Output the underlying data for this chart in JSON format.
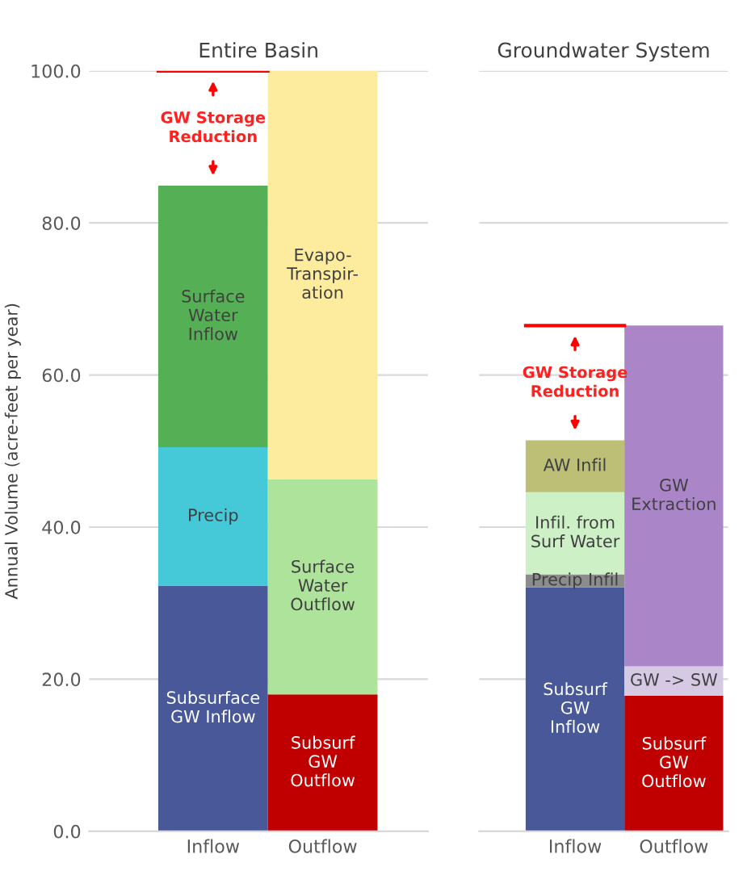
{
  "chart_data": [
    {
      "type": "bar",
      "title": "Entire Basin",
      "ylabel": "Annual Volume (acre-feet per year)",
      "categories": [
        "Inflow",
        "Outflow"
      ],
      "stacked": true,
      "ylim": [
        0,
        100
      ],
      "yticks": [
        {
          "value": 0,
          "label": "0.0"
        },
        {
          "value": 20,
          "label": "20.0"
        },
        {
          "value": 40,
          "label": "40.0"
        },
        {
          "value": 60,
          "label": "60.0"
        },
        {
          "value": 80,
          "label": "80.0"
        },
        {
          "value": 100,
          "label": "100.0"
        }
      ],
      "grid": "y",
      "series": [
        {
          "name": "Subsurface\nGW Inflow",
          "color": "#485898",
          "values": [
            32.3,
            null
          ]
        },
        {
          "name": "Precip",
          "color": "#45c8d8",
          "values": [
            18.2,
            null
          ]
        },
        {
          "name": "Surface\nWater\nInflow",
          "color": "#55b055",
          "values": [
            34.4,
            null
          ]
        },
        {
          "name": "Subsurf\nGW\nOutflow",
          "color": "#c00000",
          "values": [
            null,
            18.0
          ]
        },
        {
          "name": "Surface\nWater\nOutflow",
          "color": "#aee39c",
          "values": [
            null,
            28.3
          ]
        },
        {
          "name": "Evapo-\nTranspir-\nation",
          "color": "#fdeb9e",
          "values": [
            null,
            53.7
          ]
        }
      ],
      "ref_lines": [
        {
          "axis": "y",
          "value": 100,
          "color": "#ff0000"
        }
      ],
      "annotations": [
        "GW Storage\nReduction"
      ]
    },
    {
      "type": "bar",
      "title": "Groundwater System",
      "categories": [
        "Inflow",
        "Outflow"
      ],
      "stacked": true,
      "ylim": [
        0,
        100
      ],
      "yticks": [
        0,
        20,
        40,
        60,
        80,
        100
      ],
      "grid": "y",
      "tick_labels": "x",
      "series": [
        {
          "name": "Subsurf\nGW\nInflow",
          "color": "#485898",
          "values": [
            32.1,
            null
          ]
        },
        {
          "name": "Precip Infil",
          "color": "#8c8c8c",
          "values": [
            1.7,
            null
          ]
        },
        {
          "name": "Infil. from\nSurf Water",
          "color": "#cdf0c7",
          "values": [
            10.8,
            null
          ]
        },
        {
          "name": "AW Infil",
          "color": "#bcbf75",
          "values": [
            6.8,
            null
          ]
        },
        {
          "name": "Subsurf\nGW\nOutflow",
          "color": "#c00000",
          "values": [
            null,
            17.8
          ]
        },
        {
          "name": "GW -> SW",
          "color": "#d6c9e4",
          "values": [
            null,
            3.9
          ]
        },
        {
          "name": "GW\nExtraction",
          "color": "#aa86c8",
          "values": [
            null,
            44.8
          ]
        }
      ],
      "ref_lines": [
        {
          "axis": "y",
          "value": 66.5,
          "color": "#ff0000"
        }
      ],
      "annotations": [
        "GW Storage\nReduction"
      ]
    }
  ]
}
